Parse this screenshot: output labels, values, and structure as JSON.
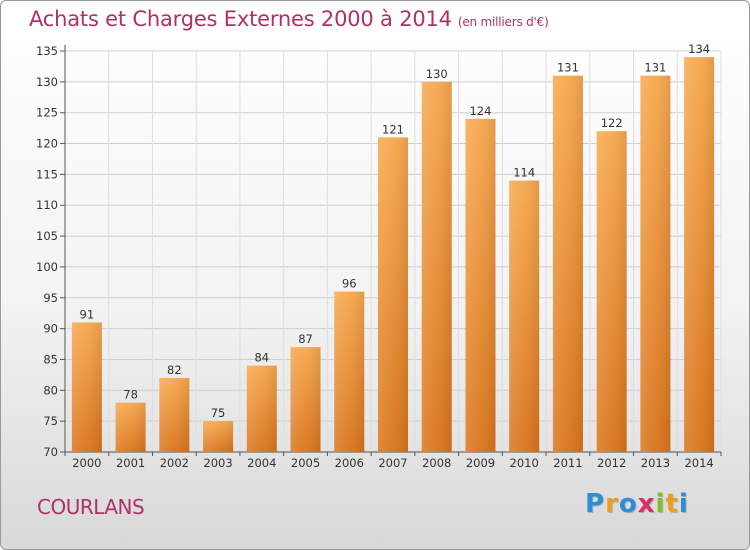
{
  "title": "Achats et Charges Externes 2000 à 2014",
  "unit": "(en milliers d'€)",
  "location": "COURLANS",
  "logo": {
    "letters": [
      "P",
      "r",
      "o",
      "x",
      "i",
      "t",
      "i"
    ],
    "colors": [
      "#2c8fd3",
      "#e8a020",
      "#2c8fd3",
      "#d82e6a",
      "#7fbf2a",
      "#e8a020",
      "#2c8fd3"
    ]
  },
  "chart_data": {
    "type": "bar",
    "categories": [
      "2000",
      "2001",
      "2002",
      "2003",
      "2004",
      "2005",
      "2006",
      "2007",
      "2008",
      "2009",
      "2010",
      "2011",
      "2012",
      "2013",
      "2014"
    ],
    "values": [
      91,
      78,
      82,
      75,
      84,
      87,
      96,
      121,
      130,
      124,
      114,
      131,
      122,
      131,
      134
    ],
    "ylim": [
      70,
      135
    ],
    "yticks": [
      70,
      75,
      80,
      85,
      90,
      95,
      100,
      105,
      110,
      115,
      120,
      125,
      130,
      135
    ],
    "grid": true,
    "bar_color": "#f0922f"
  }
}
